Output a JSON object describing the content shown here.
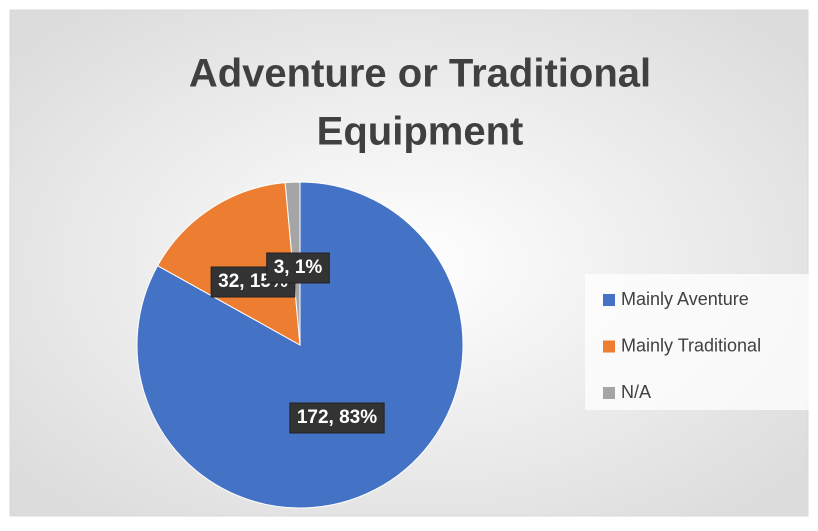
{
  "chart_data": {
    "type": "pie",
    "title": [
      "Adventure or Traditional",
      "Equipment"
    ],
    "categories": [
      "Mainly Aventure",
      "Mainly Traditional",
      "N/A"
    ],
    "values": [
      172,
      32,
      3
    ],
    "value_labels": [
      "172, 83%",
      "32, 15%",
      "3, 1%"
    ],
    "colors": [
      "#4472c4",
      "#ed7d31",
      "#a5a5a5"
    ],
    "legend": "right"
  }
}
